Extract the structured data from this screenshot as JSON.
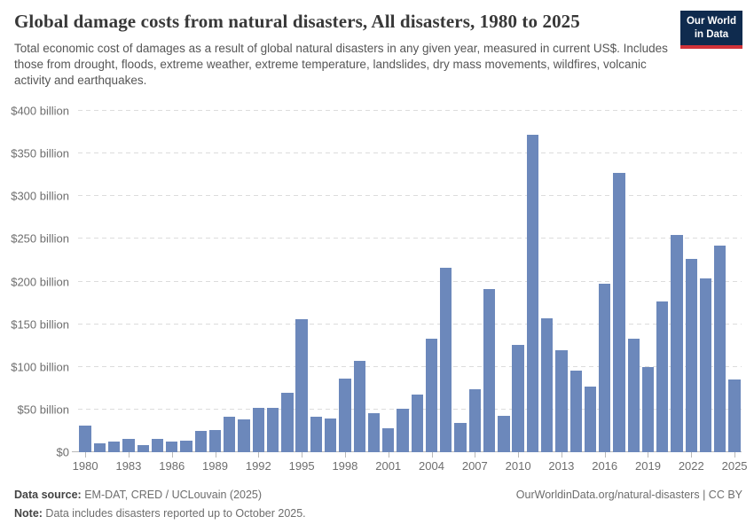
{
  "header": {
    "title": "Global damage costs from natural disasters, All disasters, 1980 to 2025",
    "subtitle": "Total economic cost of damages as a result of global natural disasters in any given year, measured in current US$. Includes those from drought, floods, extreme weather, extreme temperature, landslides, dry mass movements, wildfires, volcanic activity and earthquakes.",
    "logo": {
      "line1": "Our World",
      "line2": "in Data"
    }
  },
  "chart_data": {
    "type": "bar",
    "title": "Global damage costs from natural disasters, All disasters, 1980 to 2025",
    "unit": "US$ billions (current)",
    "x": [
      1980,
      1981,
      1982,
      1983,
      1984,
      1985,
      1986,
      1987,
      1988,
      1989,
      1990,
      1991,
      1992,
      1993,
      1994,
      1995,
      1996,
      1997,
      1998,
      1999,
      2000,
      2001,
      2002,
      2003,
      2004,
      2005,
      2006,
      2007,
      2008,
      2009,
      2010,
      2011,
      2012,
      2013,
      2014,
      2015,
      2016,
      2017,
      2018,
      2019,
      2020,
      2021,
      2022,
      2023,
      2024,
      2025
    ],
    "values": [
      31,
      10,
      13,
      16,
      8,
      16,
      13,
      14,
      25,
      26,
      42,
      38,
      52,
      52,
      70,
      156,
      42,
      39,
      86,
      107,
      46,
      28,
      51,
      68,
      133,
      216,
      34,
      74,
      191,
      43,
      126,
      372,
      157,
      119,
      96,
      77,
      197,
      327,
      133,
      100,
      177,
      255,
      226,
      204,
      242,
      85
    ],
    "ylim": [
      0,
      400
    ],
    "grid": "horizontal-dashed",
    "legend": "none",
    "bar_color": "#6C88BB",
    "yticks": [
      {
        "value": 0,
        "label": "$0"
      },
      {
        "value": 50,
        "label": "$50 billion"
      },
      {
        "value": 100,
        "label": "$100 billion"
      },
      {
        "value": 150,
        "label": "$150 billion"
      },
      {
        "value": 200,
        "label": "$200 billion"
      },
      {
        "value": 250,
        "label": "$250 billion"
      },
      {
        "value": 300,
        "label": "$300 billion"
      },
      {
        "value": 350,
        "label": "$350 billion"
      },
      {
        "value": 400,
        "label": "$400 billion"
      }
    ],
    "xticks": [
      {
        "year": 1980,
        "label": "1980"
      },
      {
        "year": 1983,
        "label": "1983"
      },
      {
        "year": 1986,
        "label": "1986"
      },
      {
        "year": 1989,
        "label": "1989"
      },
      {
        "year": 1992,
        "label": "1992"
      },
      {
        "year": 1995,
        "label": "1995"
      },
      {
        "year": 1998,
        "label": "1998"
      },
      {
        "year": 2001,
        "label": "2001"
      },
      {
        "year": 2004,
        "label": "2004"
      },
      {
        "year": 2007,
        "label": "2007"
      },
      {
        "year": 2010,
        "label": "2010"
      },
      {
        "year": 2013,
        "label": "2013"
      },
      {
        "year": 2016,
        "label": "2016"
      },
      {
        "year": 2019,
        "label": "2019"
      },
      {
        "year": 2022,
        "label": "2022"
      },
      {
        "year": 2025,
        "label": "2025"
      }
    ]
  },
  "footer": {
    "source_label": "Data source:",
    "source_text": " EM-DAT, CRED / UCLouvain (2025)",
    "note_label": "Note:",
    "note_text": " Data includes disasters reported up to October 2025.",
    "attribution": "OurWorldinData.org/natural-disasters | CC BY"
  },
  "colors": {
    "bar": "#6C88BB",
    "logo_background": "#0F2B4E",
    "logo_accent": "#D13239",
    "gridline": "#DCDCDC",
    "axis": "#B9B9B9"
  }
}
